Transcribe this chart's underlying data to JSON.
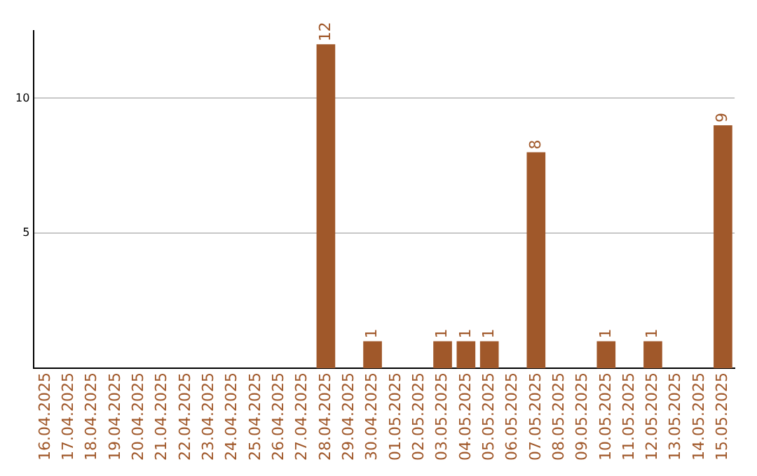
{
  "chart_data": {
    "type": "bar",
    "categories": [
      "16.04.2025",
      "17.04.2025",
      "18.04.2025",
      "19.04.2025",
      "20.04.2025",
      "21.04.2025",
      "22.04.2025",
      "23.04.2025",
      "24.04.2025",
      "25.04.2025",
      "26.04.2025",
      "27.04.2025",
      "28.04.2025",
      "29.04.2025",
      "30.04.2025",
      "01.05.2025",
      "02.05.2025",
      "03.05.2025",
      "04.05.2025",
      "05.05.2025",
      "06.05.2025",
      "07.05.2025",
      "08.05.2025",
      "09.05.2025",
      "10.05.2025",
      "11.05.2025",
      "12.05.2025",
      "13.05.2025",
      "14.05.2025",
      "15.05.2025"
    ],
    "values": [
      0,
      0,
      0,
      0,
      0,
      0,
      0,
      0,
      0,
      0,
      0,
      0,
      12,
      0,
      1,
      0,
      0,
      1,
      1,
      1,
      0,
      8,
      0,
      0,
      1,
      0,
      1,
      0,
      0,
      9
    ],
    "value_labels": [
      null,
      null,
      null,
      null,
      null,
      null,
      null,
      null,
      null,
      null,
      null,
      null,
      "12",
      null,
      "1",
      null,
      null,
      "1",
      "1",
      "1",
      null,
      "8",
      null,
      null,
      "1",
      null,
      "1",
      null,
      null,
      "9"
    ],
    "color": "#a0582a",
    "ylim": [
      0,
      12.5
    ],
    "yticks": [
      5,
      10
    ],
    "grid": "y"
  }
}
